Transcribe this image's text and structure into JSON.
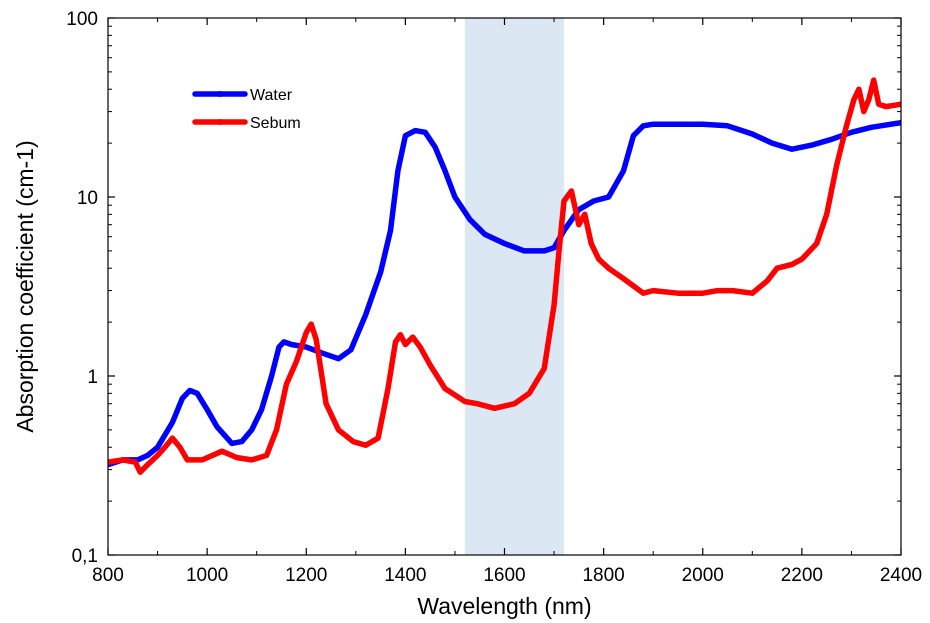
{
  "chart_data": {
    "type": "line",
    "xlabel": "Wavelength (nm)",
    "ylabel": "Absorption coefficient (cm-1)",
    "xlim": [
      800,
      2400
    ],
    "ylim": [
      0.1,
      100
    ],
    "y_scale": "log",
    "x_ticks": [
      800,
      1000,
      1200,
      1400,
      1600,
      1800,
      2000,
      2200,
      2400
    ],
    "x_tick_labels": [
      "800",
      "1000",
      "1200",
      "1400",
      "1600",
      "1800",
      "2000",
      "2200",
      "2400"
    ],
    "y_ticks": [
      0.1,
      1,
      10,
      100
    ],
    "y_tick_labels": [
      "0,1",
      "1",
      "10",
      "100"
    ],
    "legend_position": "top-left",
    "highlight_band": {
      "x_start": 1520,
      "x_end": 1720,
      "color": "#dce7f4"
    },
    "series": [
      {
        "name": "Water",
        "color": "#0000ff",
        "x": [
          800,
          830,
          860,
          880,
          900,
          930,
          950,
          965,
          980,
          1000,
          1020,
          1050,
          1070,
          1090,
          1110,
          1130,
          1145,
          1155,
          1170,
          1200,
          1230,
          1265,
          1290,
          1320,
          1350,
          1370,
          1385,
          1400,
          1420,
          1440,
          1460,
          1480,
          1500,
          1530,
          1560,
          1600,
          1640,
          1680,
          1700,
          1720,
          1750,
          1780,
          1810,
          1840,
          1860,
          1880,
          1900,
          1950,
          2000,
          2050,
          2100,
          2140,
          2180,
          2220,
          2260,
          2300,
          2340,
          2380,
          2400
        ],
        "y": [
          0.32,
          0.34,
          0.34,
          0.36,
          0.4,
          0.55,
          0.75,
          0.83,
          0.8,
          0.65,
          0.52,
          0.42,
          0.43,
          0.5,
          0.65,
          1.0,
          1.45,
          1.55,
          1.5,
          1.45,
          1.35,
          1.25,
          1.4,
          2.2,
          3.8,
          6.5,
          14.0,
          22.0,
          23.5,
          23.0,
          19.0,
          14.0,
          10.0,
          7.5,
          6.2,
          5.5,
          5.0,
          5.0,
          5.2,
          6.5,
          8.5,
          9.5,
          10.0,
          14.0,
          22.0,
          25.0,
          25.5,
          25.5,
          25.5,
          25.0,
          22.5,
          20.0,
          18.5,
          19.5,
          21.0,
          23.0,
          24.5,
          25.5,
          26.0
        ]
      },
      {
        "name": "Sebum",
        "color": "#ff0000",
        "x": [
          800,
          830,
          855,
          865,
          880,
          900,
          915,
          930,
          945,
          960,
          990,
          1030,
          1060,
          1090,
          1120,
          1140,
          1160,
          1180,
          1200,
          1210,
          1220,
          1240,
          1265,
          1295,
          1320,
          1345,
          1365,
          1380,
          1390,
          1400,
          1415,
          1430,
          1450,
          1480,
          1520,
          1545,
          1580,
          1620,
          1650,
          1680,
          1700,
          1710,
          1720,
          1735,
          1750,
          1762,
          1775,
          1790,
          1810,
          1840,
          1880,
          1900,
          1950,
          2000,
          2030,
          2060,
          2100,
          2130,
          2150,
          2180,
          2200,
          2230,
          2250,
          2270,
          2290,
          2305,
          2315,
          2325,
          2335,
          2345,
          2355,
          2370,
          2400
        ],
        "y": [
          0.33,
          0.34,
          0.33,
          0.29,
          0.32,
          0.36,
          0.4,
          0.45,
          0.4,
          0.34,
          0.34,
          0.38,
          0.35,
          0.34,
          0.36,
          0.5,
          0.9,
          1.2,
          1.75,
          1.95,
          1.6,
          0.7,
          0.5,
          0.43,
          0.41,
          0.45,
          0.85,
          1.55,
          1.7,
          1.5,
          1.65,
          1.45,
          1.15,
          0.85,
          0.72,
          0.7,
          0.66,
          0.7,
          0.8,
          1.1,
          2.5,
          5.0,
          9.5,
          10.8,
          7.0,
          8.0,
          5.5,
          4.5,
          4.0,
          3.5,
          2.9,
          3.0,
          2.9,
          2.9,
          3.0,
          3.0,
          2.9,
          3.4,
          4.0,
          4.2,
          4.5,
          5.5,
          8.0,
          15.0,
          25.0,
          35.0,
          40.0,
          30.0,
          35.0,
          45.0,
          33.0,
          32.0,
          33.0
        ]
      }
    ]
  }
}
